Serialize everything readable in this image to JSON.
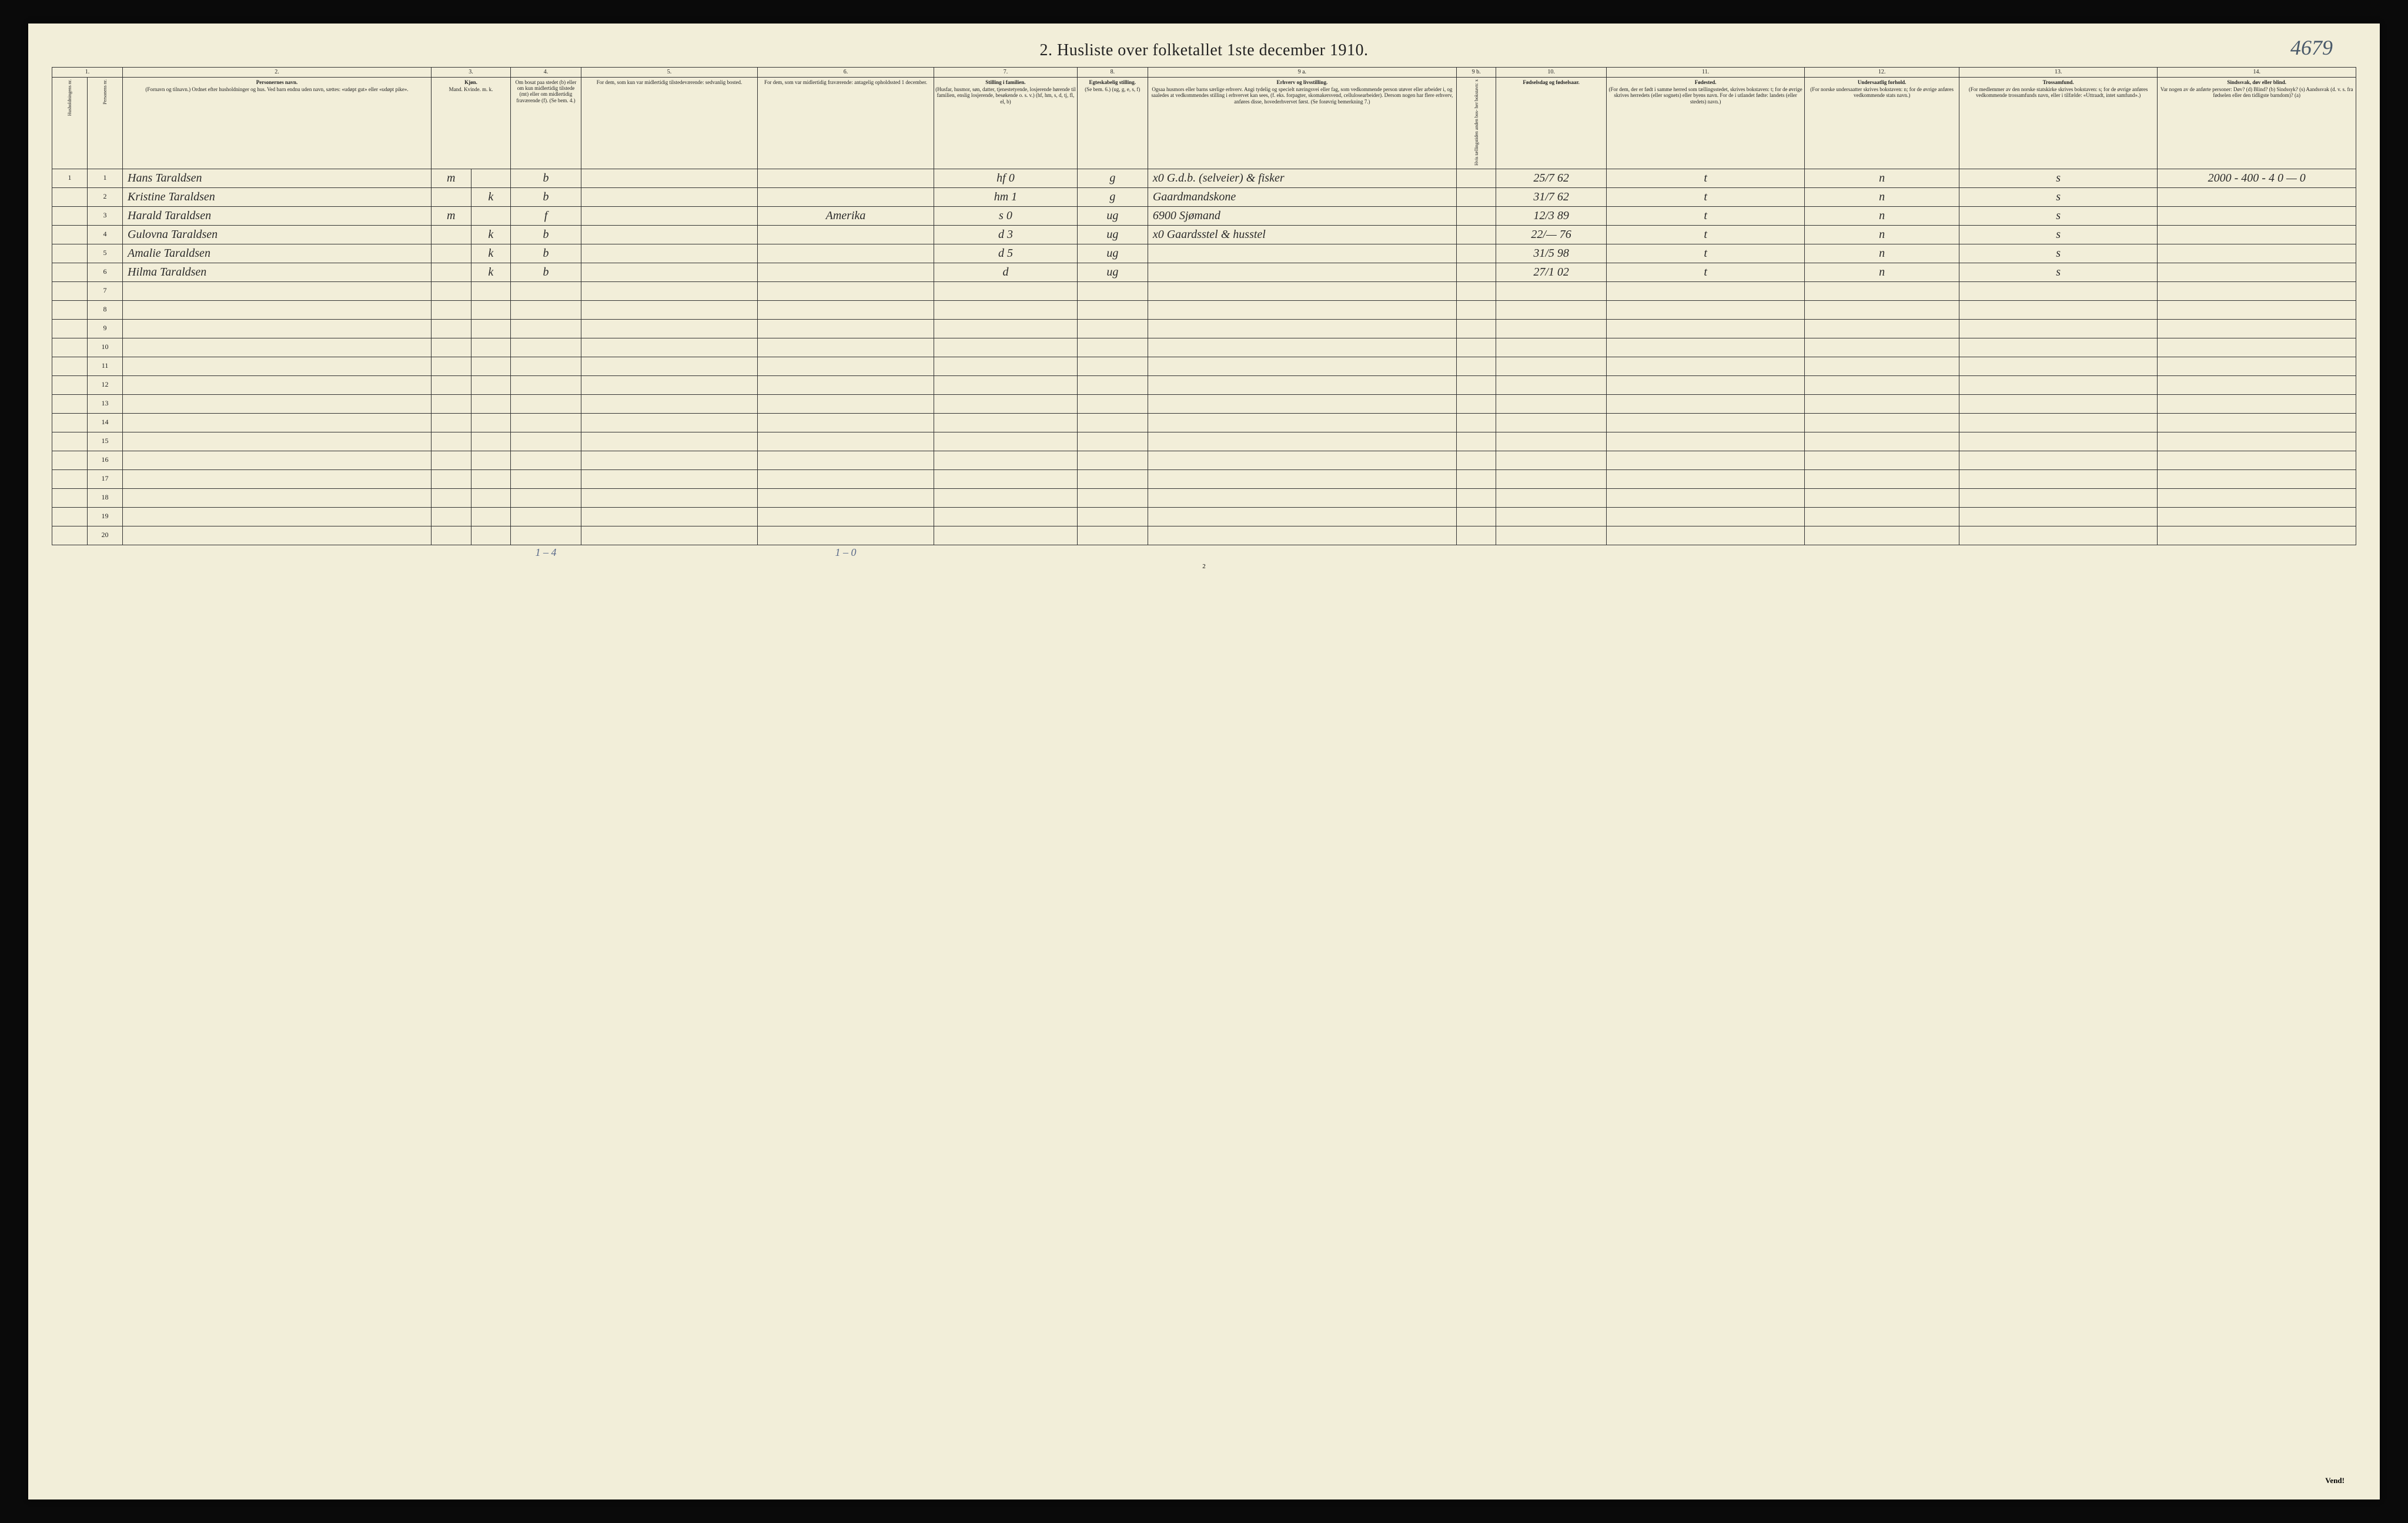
{
  "page_number_handwritten": "4679",
  "title": "2.  Husliste over folketallet 1ste december 1910.",
  "columns": {
    "nums": [
      "1.",
      "2.",
      "3.",
      "4.",
      "5.",
      "6.",
      "7.",
      "8.",
      "9 a.",
      "9 b.",
      "10.",
      "11.",
      "12.",
      "13.",
      "14."
    ],
    "h1_vert": "Husholdningens nr.",
    "h1b_vert": "Personens nr.",
    "h2": {
      "title": "Personernes navn.",
      "sub": "(Fornavn og tilnavn.)\nOrdnet efter husholdninger og hus.\nVed barn endnu uden navn, sættes: «udøpt gut» eller «udøpt pike»."
    },
    "h3": {
      "title": "Kjøn.",
      "sub": "Mand.  Kvinde.\nm.  k."
    },
    "h4": {
      "title": "",
      "sub": "Om bosat paa stedet (b) eller om kun midlertidig tilstede (mt) eller om midlertidig fraværende (f).\n(Se bem. 4.)"
    },
    "h5": {
      "title": "",
      "sub": "For dem, som kun var midlertidig tilstedeværende:\nsedvanlig bosted."
    },
    "h6": {
      "title": "",
      "sub": "For dem, som var midlertidig fraværende:\nantagelig opholdssted 1 december."
    },
    "h7": {
      "title": "Stilling i familien.",
      "sub": "(Husfar, husmor, søn, datter, tjenestetyende, losjerende hørende til familien, enslig losjerende, besøkende o. s. v.)\n(hf, hm, s, d, tj, fl, el, b)"
    },
    "h8": {
      "title": "Egteskabelig stilling.",
      "sub": "(Se bem. 6.)\n(ug, g, e, s, f)"
    },
    "h9a": {
      "title": "Erhverv og livsstilling.",
      "sub": "Ogsaa husmors eller barns særlige erhverv. Angi tydelig og specielt næringsvei eller fag, som vedkommende person utøver eller arbeider i, og saaledes at vedkommendes stilling i erhvervet kan sees, (f. eks. forpagter, skomakersvend, cellulosearbeider). Dersom nogen har flere erhverv, anføres disse, hovederhvervet først.\n(Se forøvrig bemerkning 7.)"
    },
    "h9b_vert": "Hvis tællingstiden anden bos- her bokstavn: x",
    "h10": {
      "title": "Fødselsdag og fødselsaar."
    },
    "h11": {
      "title": "Fødested.",
      "sub": "(For dem, der er født i samme herred som tællingsstedet, skrives bokstaven: t; for de øvrige skrives herredets (eller sognets) eller byens navn. For de i utlandet fødte: landets (eller stedets) navn.)"
    },
    "h12": {
      "title": "Undersaatlig forhold.",
      "sub": "(For norske undersaatter skrives bokstaven: n; for de øvrige anføres vedkommende stats navn.)"
    },
    "h13": {
      "title": "Trossamfund.",
      "sub": "(For medlemmer av den norske statskirke skrives bokstaven: s; for de øvrige anføres vedkommende trossamfunds navn, eller i tilfælde: «Uttraadt, intet samfund».)"
    },
    "h14": {
      "title": "Sindssvak, døv eller blind.",
      "sub": "Var nogen av de anførte personer:\nDøv?      (d)\nBlind?    (b)\nSindssyk? (s)\nAandssvak (d. v. s. fra fødselen eller den tidligste barndom)? (a)"
    }
  },
  "rows": [
    {
      "hh": "1",
      "pn": "1",
      "name": "Hans Taraldsen",
      "sex": "m",
      "res": "b",
      "away": "",
      "fam": "hf",
      "famnum": "0",
      "mar": "g",
      "occ_pre": "x0",
      "occ": "G.d.b. (selveier) & fisker",
      "born": "25/7 62",
      "birthplace": "t",
      "nat": "n",
      "rel": "s",
      "note": "2000 - 400 - 4\n0  —  0"
    },
    {
      "hh": "",
      "pn": "2",
      "name": "Kristine Taraldsen",
      "sex": "k",
      "res": "b",
      "away": "",
      "fam": "hm",
      "famnum": "1",
      "mar": "g",
      "occ_pre": "",
      "occ": "Gaardmandskone",
      "born": "31/7 62",
      "birthplace": "t",
      "nat": "n",
      "rel": "s",
      "note": ""
    },
    {
      "hh": "",
      "pn": "3",
      "name": "Harald Taraldsen",
      "sex": "m",
      "res": "f",
      "away": "Amerika",
      "fam": "s",
      "famnum": "0",
      "mar": "ug",
      "occ_pre": "6900",
      "occ": "Sjømand",
      "born": "12/3 89",
      "birthplace": "t",
      "nat": "n",
      "rel": "s",
      "note": ""
    },
    {
      "hh": "",
      "pn": "4",
      "name": "Gulovna Taraldsen",
      "sex": "k",
      "res": "b",
      "away": "",
      "fam": "d",
      "famnum": "3",
      "mar": "ug",
      "occ_pre": "x0",
      "occ": "Gaardsstel & husstel",
      "born": "22/— 76",
      "birthplace": "t",
      "nat": "n",
      "rel": "s",
      "note": ""
    },
    {
      "hh": "",
      "pn": "5",
      "name": "Amalie Taraldsen",
      "sex": "k",
      "res": "b",
      "away": "",
      "fam": "d",
      "famnum": "5",
      "mar": "ug",
      "occ_pre": "",
      "occ": "",
      "born": "31/5 98",
      "birthplace": "t",
      "nat": "n",
      "rel": "s",
      "note": ""
    },
    {
      "hh": "",
      "pn": "6",
      "name": "Hilma Taraldsen",
      "sex": "k",
      "res": "b",
      "away": "",
      "fam": "d",
      "famnum": "",
      "mar": "ug",
      "occ_pre": "",
      "occ": "",
      "born": "27/1 02",
      "birthplace": "t",
      "nat": "n",
      "rel": "s",
      "note": ""
    }
  ],
  "empty_rows": [
    "7",
    "8",
    "9",
    "10",
    "11",
    "12",
    "13",
    "14",
    "15",
    "16",
    "17",
    "18",
    "19",
    "20"
  ],
  "footer": {
    "left": "1 – 4",
    "mid": "1 – 0"
  },
  "bottom_page": "2",
  "vend": "Vend!",
  "col_widths_pct": [
    1.6,
    1.6,
    14,
    1.8,
    1.8,
    3.2,
    8,
    8,
    6.5,
    3.2,
    14,
    1.8,
    5,
    9,
    7,
    9,
    9
  ],
  "colors": {
    "paper": "#f2eed9",
    "ink": "#222222",
    "hand_blue": "#4a5a7a",
    "border": "#333333",
    "background": "#0a0a0a"
  }
}
